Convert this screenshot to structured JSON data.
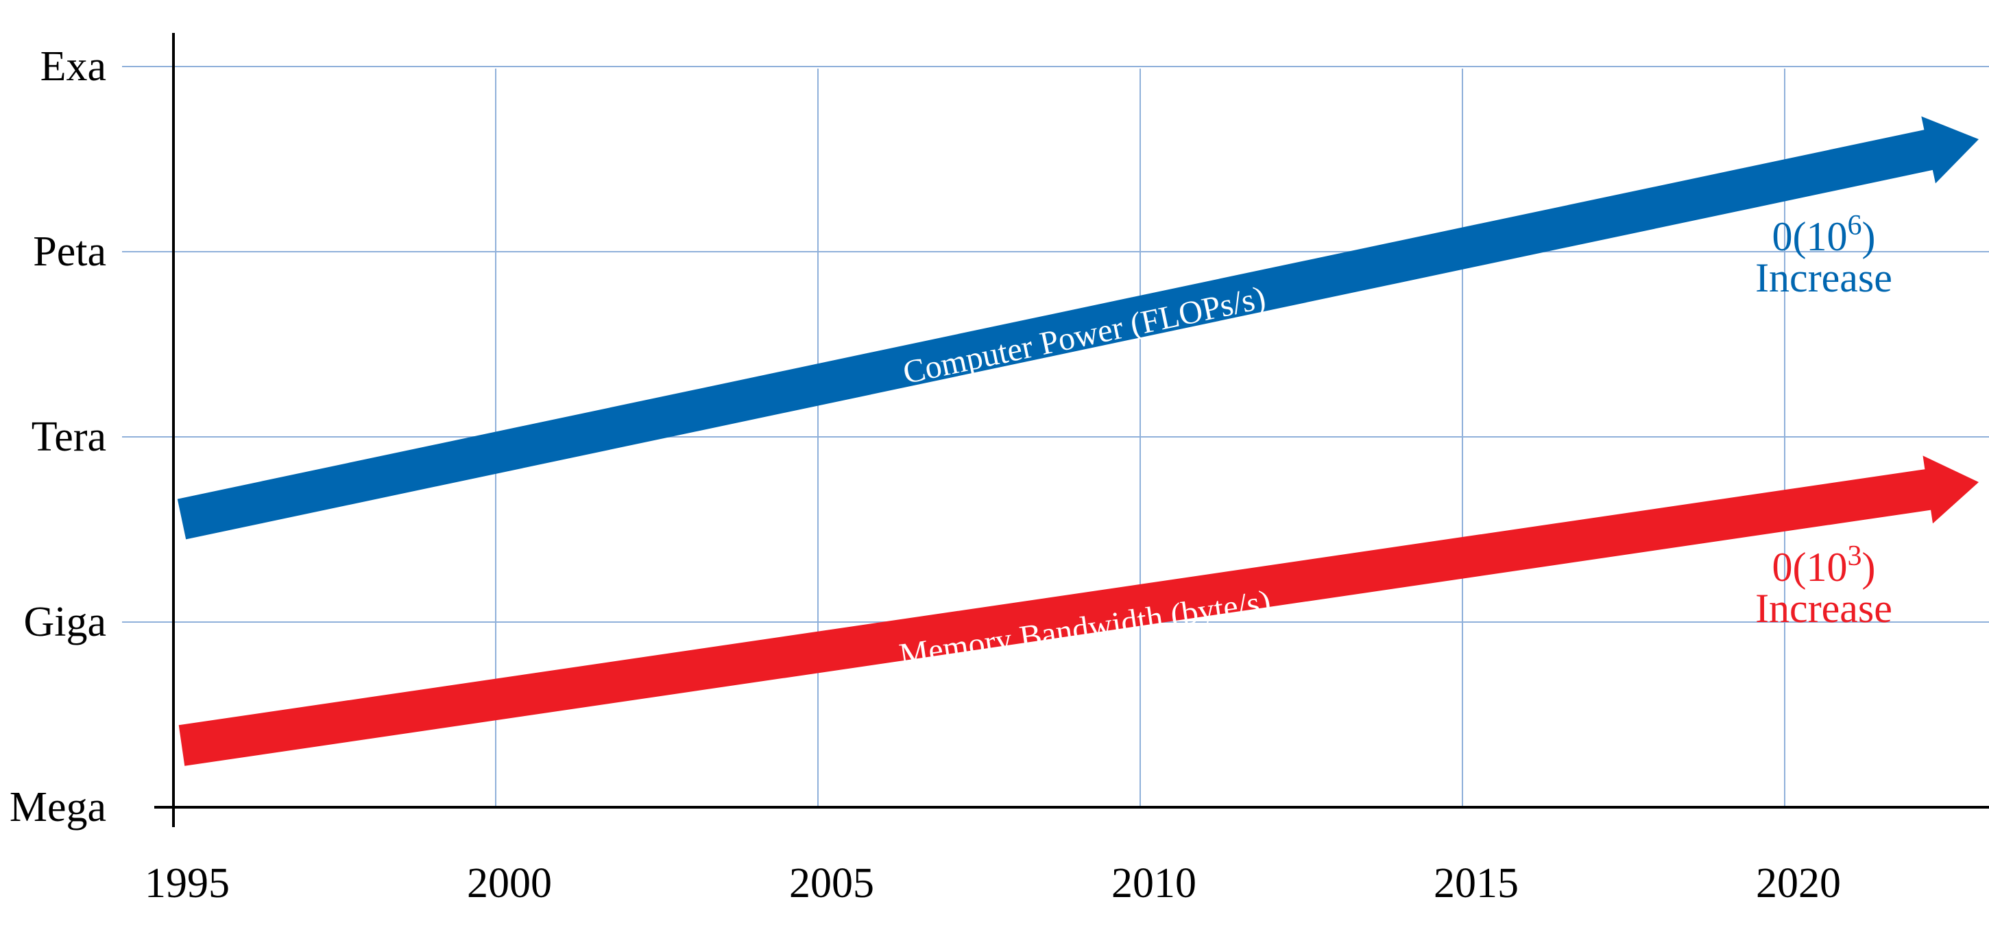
{
  "chart_data": {
    "type": "line",
    "title": "",
    "xlabel": "",
    "ylabel": "",
    "x_ticks": [
      "1995",
      "2000",
      "2005",
      "2010",
      "2015",
      "2020"
    ],
    "y_ticks": [
      "Mega",
      "Giga",
      "Tera",
      "Peta",
      "Exa"
    ],
    "y_scale": "log",
    "xlim": [
      1995,
      2023
    ],
    "ylim": [
      "Mega",
      "Exa"
    ],
    "grid": true,
    "legend": "none",
    "series": [
      {
        "name": "Computer Power (FLOPs/s)",
        "color": "#0066b0",
        "start": {
          "x": 1995,
          "y": "Tera"
        },
        "end": {
          "x": 2022,
          "y": "Exa"
        },
        "annotation": {
          "prefix": "0(10",
          "exponent": "6",
          "suffix": ")",
          "line2": "Increase"
        }
      },
      {
        "name": "Memory Bandwidth (byte/s)",
        "color": "#ed1c24",
        "start": {
          "x": 1995,
          "y": "Giga"
        },
        "end": {
          "x": 2022,
          "y": "Tera"
        },
        "annotation": {
          "prefix": "0(10",
          "exponent": "3",
          "suffix": ")",
          "line2": "Increase"
        }
      }
    ]
  }
}
